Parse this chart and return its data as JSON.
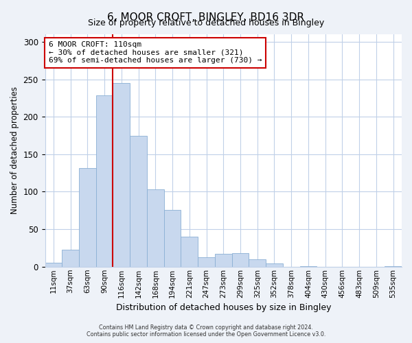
{
  "title": "6, MOOR CROFT, BINGLEY, BD16 3DR",
  "subtitle": "Size of property relative to detached houses in Bingley",
  "xlabel": "Distribution of detached houses by size in Bingley",
  "ylabel": "Number of detached properties",
  "bar_labels": [
    "11sqm",
    "37sqm",
    "63sqm",
    "90sqm",
    "116sqm",
    "142sqm",
    "168sqm",
    "194sqm",
    "221sqm",
    "247sqm",
    "273sqm",
    "299sqm",
    "325sqm",
    "352sqm",
    "378sqm",
    "404sqm",
    "430sqm",
    "456sqm",
    "483sqm",
    "509sqm",
    "535sqm"
  ],
  "bar_values": [
    5,
    23,
    132,
    229,
    245,
    175,
    103,
    76,
    40,
    13,
    17,
    18,
    10,
    4,
    0,
    1,
    0,
    0,
    0,
    0,
    1
  ],
  "bar_color": "#c8d8ee",
  "bar_edge_color": "#8aafd4",
  "vline_color": "#cc0000",
  "ylim": [
    0,
    310
  ],
  "yticks": [
    0,
    50,
    100,
    150,
    200,
    250,
    300
  ],
  "annotation_title": "6 MOOR CROFT: 110sqm",
  "annotation_line1": "← 30% of detached houses are smaller (321)",
  "annotation_line2": "69% of semi-detached houses are larger (730) →",
  "footer_line1": "Contains HM Land Registry data © Crown copyright and database right 2024.",
  "footer_line2": "Contains public sector information licensed under the Open Government Licence v3.0.",
  "background_color": "#eef2f8",
  "plot_background": "#ffffff",
  "grid_color": "#c0d0e8",
  "vline_bar_index": 4
}
